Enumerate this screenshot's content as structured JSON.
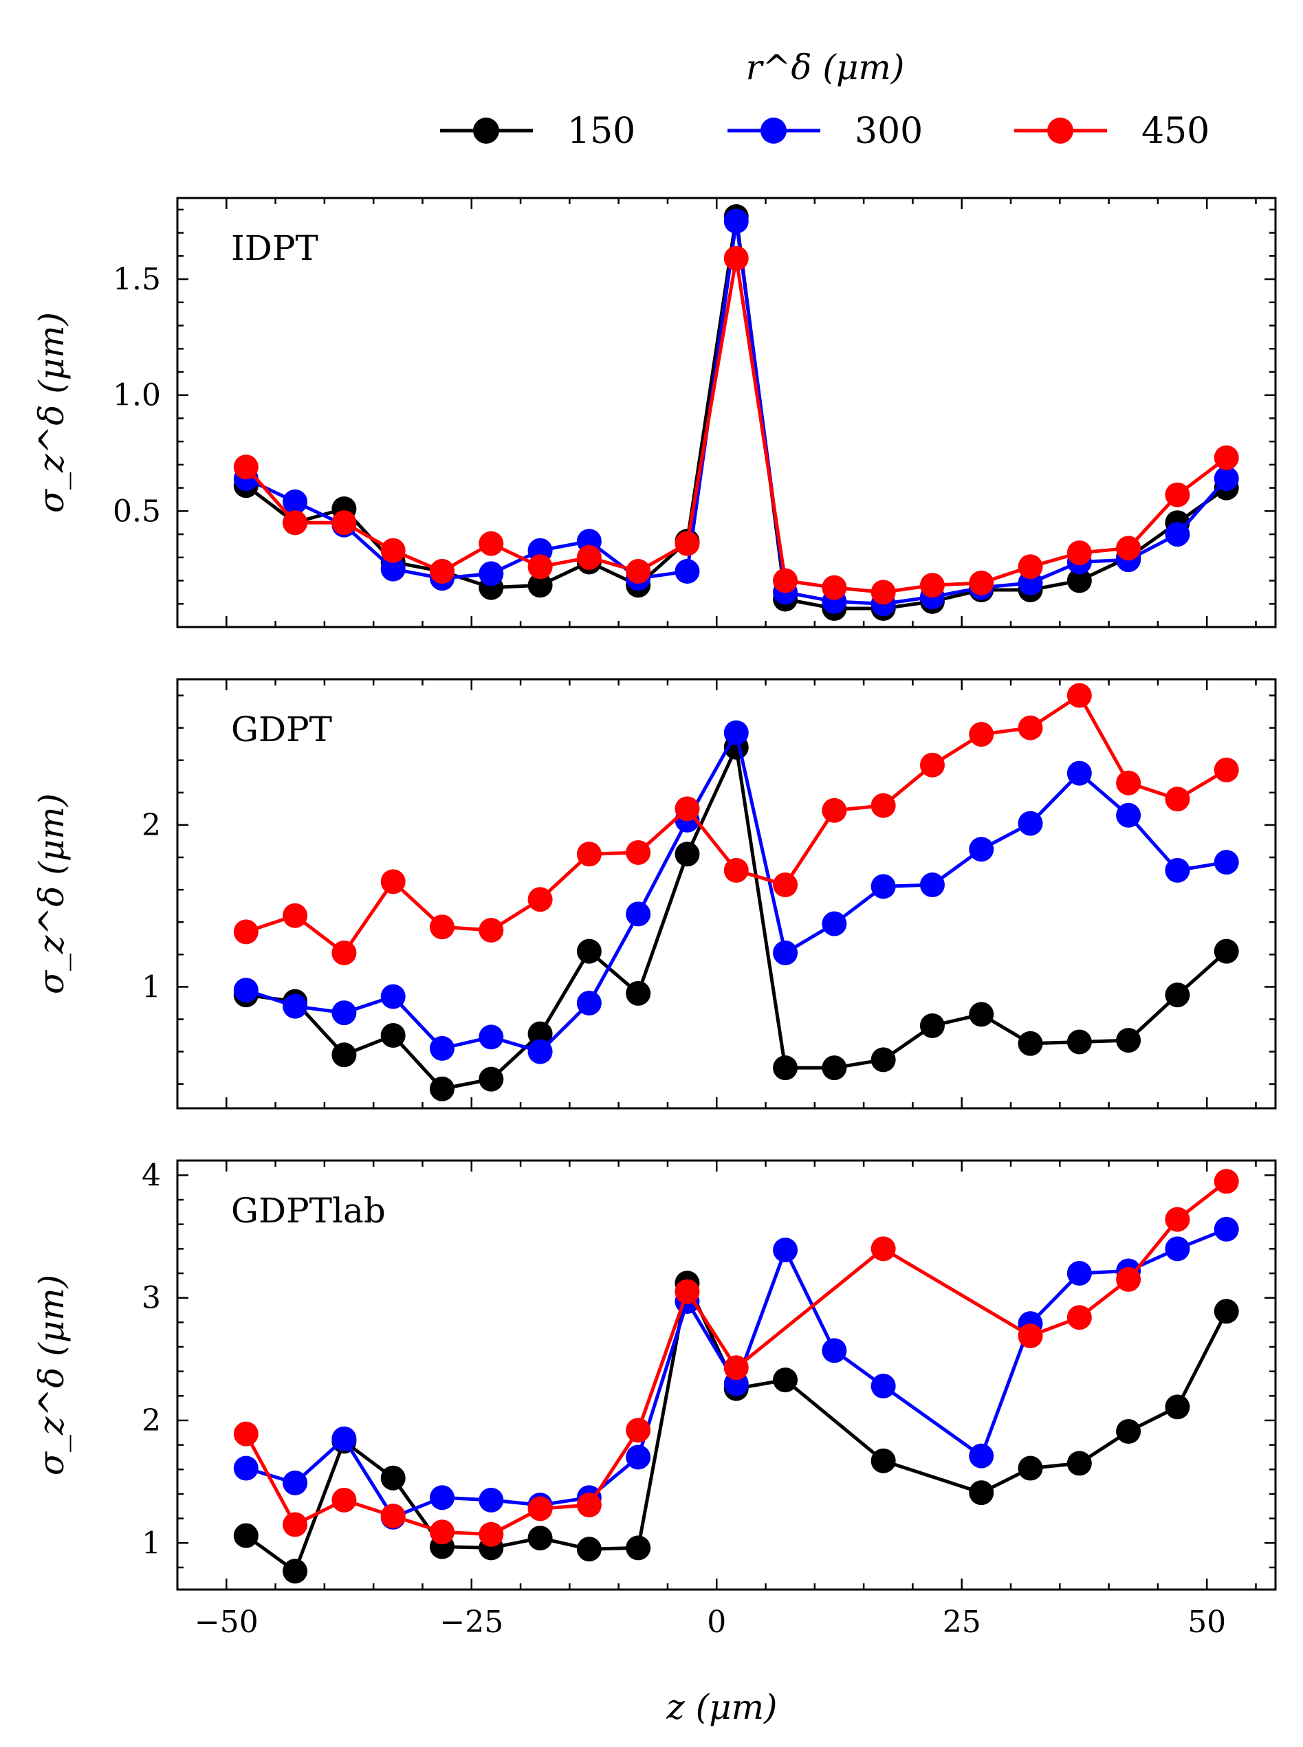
{
  "chart_data": {
    "type": "line",
    "legend": {
      "title": "r^δ (μm)",
      "placement": "top-center",
      "entries": [
        {
          "label": "150",
          "color": "#000000"
        },
        {
          "label": "300",
          "color": "#0000ff"
        },
        {
          "label": "450",
          "color": "#ff0000"
        }
      ]
    },
    "xlabel": "z (μm)",
    "xlim": [
      -55,
      57
    ],
    "xticks": [
      -50,
      -25,
      0,
      25,
      50
    ],
    "xtick_labels": [
      "−50",
      "−25",
      "0",
      "25",
      "50"
    ],
    "x": [
      -48,
      -43,
      -38,
      -33,
      -28,
      -23,
      -18,
      -13,
      -8,
      -3,
      2,
      7,
      12,
      17,
      22,
      27,
      32,
      37,
      42,
      47,
      52
    ],
    "panels": [
      {
        "label": "IDPT",
        "ylabel": "σ_z^δ (μm)",
        "ylim": [
          0.0,
          1.85
        ],
        "yticks": [
          0.5,
          1.0,
          1.5
        ],
        "ytick_labels": [
          "0.5",
          "1.0",
          "1.5"
        ],
        "series": [
          {
            "name": "150",
            "color": "#000000",
            "values": [
              0.61,
              0.45,
              0.51,
              0.28,
              0.24,
              0.17,
              0.18,
              0.28,
              0.18,
              0.37,
              1.77,
              0.12,
              0.08,
              0.08,
              0.11,
              0.16,
              0.16,
              0.2,
              0.3,
              0.45,
              0.6
            ]
          },
          {
            "name": "300",
            "color": "#0000ff",
            "values": [
              0.64,
              0.54,
              0.44,
              0.25,
              0.21,
              0.23,
              0.33,
              0.37,
              0.21,
              0.24,
              1.75,
              0.15,
              0.11,
              0.1,
              0.13,
              0.17,
              0.19,
              0.28,
              0.29,
              0.4,
              0.64
            ]
          },
          {
            "name": "450",
            "color": "#ff0000",
            "values": [
              0.69,
              0.45,
              0.45,
              0.33,
              0.24,
              0.36,
              0.26,
              0.3,
              0.24,
              0.36,
              1.59,
              0.2,
              0.17,
              0.15,
              0.18,
              0.19,
              0.26,
              0.32,
              0.34,
              0.57,
              0.73
            ]
          }
        ]
      },
      {
        "label": "GDPT",
        "ylabel": "σ_z^δ (μm)",
        "ylim": [
          0.25,
          2.9
        ],
        "yticks": [
          1,
          2
        ],
        "ytick_labels": [
          "1",
          "2"
        ],
        "series": [
          {
            "name": "150",
            "color": "#000000",
            "values": [
              0.95,
              0.91,
              0.58,
              0.7,
              0.37,
              0.43,
              0.71,
              1.22,
              0.96,
              1.82,
              2.48,
              0.5,
              0.5,
              0.55,
              0.76,
              0.83,
              0.65,
              0.66,
              0.67,
              0.95,
              1.22
            ]
          },
          {
            "name": "300",
            "color": "#0000ff",
            "values": [
              0.98,
              0.88,
              0.84,
              0.94,
              0.62,
              0.69,
              0.6,
              0.9,
              1.45,
              2.03,
              2.57,
              1.21,
              1.39,
              1.62,
              1.63,
              1.85,
              2.01,
              2.32,
              2.06,
              1.72,
              1.77
            ]
          },
          {
            "name": "450",
            "color": "#ff0000",
            "values": [
              1.34,
              1.44,
              1.21,
              1.65,
              1.37,
              1.35,
              1.54,
              1.82,
              1.83,
              2.1,
              1.72,
              1.63,
              2.09,
              2.12,
              2.37,
              2.56,
              2.6,
              2.8,
              2.26,
              2.16,
              2.34
            ]
          }
        ]
      },
      {
        "label": "GDPTlab",
        "ylabel": "σ_z^δ (μm)",
        "ylim": [
          0.62,
          4.12
        ],
        "yticks": [
          1,
          2,
          3,
          4
        ],
        "ytick_labels": [
          "1",
          "2",
          "3",
          "4"
        ],
        "series": [
          {
            "name": "150",
            "color": "#000000",
            "values": [
              1.06,
              0.77,
              1.83,
              1.53,
              0.97,
              0.96,
              1.04,
              0.95,
              0.96,
              3.12,
              2.26,
              2.33,
              null,
              1.67,
              null,
              1.41,
              1.61,
              1.65,
              1.91,
              2.11,
              2.89
            ]
          },
          {
            "name": "300",
            "color": "#0000ff",
            "values": [
              1.61,
              1.49,
              1.85,
              1.21,
              1.37,
              1.35,
              1.31,
              1.37,
              1.7,
              2.97,
              2.3,
              3.39,
              2.57,
              2.28,
              null,
              1.71,
              2.79,
              3.2,
              3.22,
              3.4,
              3.56
            ]
          },
          {
            "name": "450",
            "color": "#ff0000",
            "values": [
              1.89,
              1.15,
              1.35,
              1.22,
              1.09,
              1.07,
              1.28,
              1.31,
              1.92,
              3.05,
              2.43,
              null,
              null,
              3.4,
              null,
              null,
              2.69,
              2.84,
              3.15,
              3.64,
              3.95
            ]
          }
        ]
      }
    ]
  }
}
